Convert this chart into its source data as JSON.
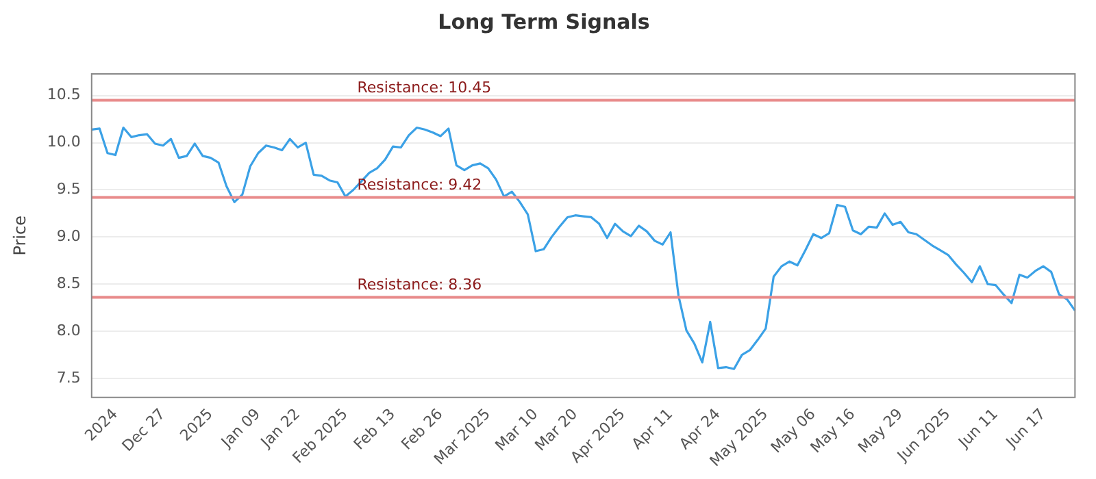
{
  "chart_data": {
    "type": "line",
    "title": "Long Term Signals",
    "ylabel": "Price",
    "categories": [
      null,
      null,
      null,
      "2024",
      null,
      null,
      null,
      null,
      null,
      "Dec 27",
      null,
      null,
      null,
      null,
      null,
      "2025",
      null,
      null,
      null,
      null,
      null,
      "Jan 09",
      null,
      null,
      null,
      null,
      "Jan 22",
      null,
      null,
      null,
      null,
      null,
      "Feb 2025",
      null,
      null,
      null,
      null,
      null,
      "Feb 13",
      null,
      null,
      null,
      null,
      null,
      "Feb 26",
      null,
      null,
      null,
      null,
      null,
      "Mar 2025",
      null,
      null,
      null,
      null,
      null,
      "Mar 10",
      null,
      null,
      null,
      null,
      "Mar 20",
      null,
      null,
      null,
      null,
      null,
      "Apr 2025",
      null,
      null,
      null,
      null,
      null,
      "Apr 11",
      null,
      null,
      null,
      null,
      null,
      "Apr 24",
      null,
      null,
      null,
      null,
      null,
      "May 2025",
      null,
      null,
      null,
      null,
      null,
      "May 06",
      null,
      null,
      null,
      null,
      "May 16",
      null,
      null,
      null,
      null,
      null,
      "May 29",
      null,
      null,
      null,
      null,
      null,
      "Jun 2025",
      null,
      null,
      null,
      null,
      null,
      "Jun 11",
      null,
      null,
      null,
      null,
      null,
      "Jun 17",
      null,
      null,
      null,
      null
    ],
    "series": [
      {
        "color": "#3ba1e6",
        "values": [
          10.14,
          10.15,
          9.89,
          9.87,
          10.16,
          10.06,
          10.08,
          10.09,
          9.99,
          9.97,
          10.04,
          9.84,
          9.86,
          9.99,
          9.86,
          9.84,
          9.79,
          9.54,
          9.37,
          9.45,
          9.75,
          9.89,
          9.97,
          9.95,
          9.92,
          10.04,
          9.95,
          10.0,
          9.66,
          9.65,
          9.6,
          9.58,
          9.43,
          9.5,
          9.59,
          9.68,
          9.73,
          9.82,
          9.96,
          9.95,
          10.08,
          10.16,
          10.14,
          10.11,
          10.07,
          10.15,
          9.76,
          9.71,
          9.76,
          9.78,
          9.73,
          9.61,
          9.43,
          9.48,
          9.37,
          9.24,
          8.85,
          8.87,
          9.0,
          9.11,
          9.21,
          9.23,
          9.22,
          9.21,
          9.14,
          8.99,
          9.14,
          9.06,
          9.01,
          9.12,
          9.06,
          8.96,
          8.92,
          9.05,
          8.38,
          8.01,
          7.87,
          7.67,
          8.1,
          7.61,
          7.62,
          7.6,
          7.75,
          7.8,
          7.91,
          8.03,
          8.58,
          8.69,
          8.74,
          8.7,
          8.86,
          9.03,
          8.99,
          9.04,
          9.34,
          9.32,
          9.07,
          9.03,
          9.11,
          9.1,
          9.25,
          9.13,
          9.16,
          9.05,
          9.03,
          8.97,
          8.91,
          8.86,
          8.81,
          8.71,
          8.62,
          8.52,
          8.69,
          8.5,
          8.49,
          8.39,
          8.3,
          8.6,
          8.57,
          8.64,
          8.69,
          8.63,
          8.39,
          8.34,
          8.22
        ]
      }
    ],
    "ylim": [
      7.3,
      10.73
    ],
    "yticks": [
      7.5,
      {
        "value": 8,
        "label": "8.0"
      },
      8.5,
      {
        "value": 9,
        "label": "9.0"
      },
      9.5,
      {
        "value": 10,
        "label": "10.0"
      },
      10.5
    ],
    "ref_lines": [
      {
        "axis": "y",
        "value": 10.45,
        "label": "Resistance: 10.45",
        "color": "#e88a8a"
      },
      {
        "axis": "y",
        "value": 9.42,
        "label": "Resistance: 9.42",
        "color": "#e88a8a"
      },
      {
        "axis": "y",
        "value": 8.36,
        "label": "Resistance: 8.36",
        "color": "#e88a8a"
      }
    ],
    "grid": "y",
    "legend": false,
    "marker": "none",
    "line_style": "solid"
  }
}
